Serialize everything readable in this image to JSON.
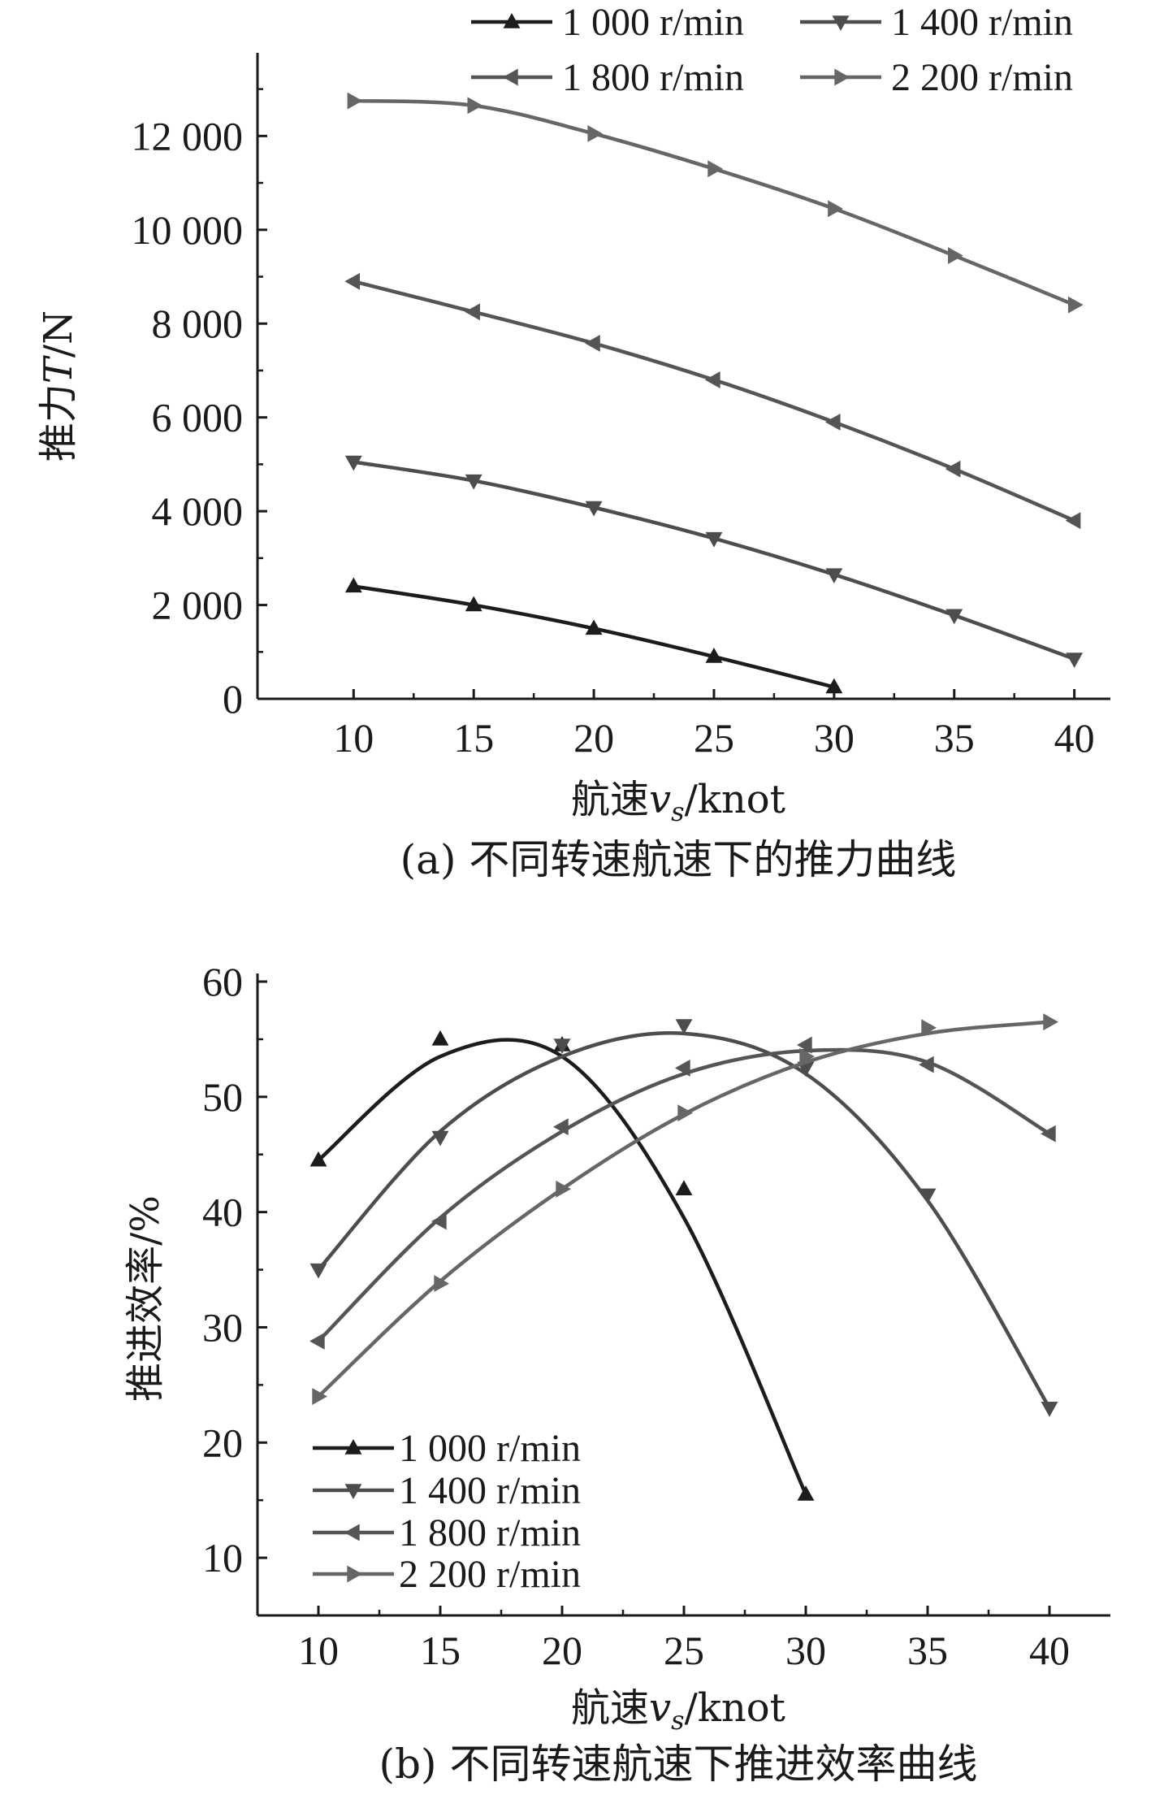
{
  "chart_data": [
    {
      "type": "line",
      "caption": "(a) 不同转速航速下的推力曲线",
      "xlabel": "航速v_s/knot",
      "xlabel_parts": {
        "prefix": "航速",
        "var": "v",
        "sub": "s",
        "suffix": "/knot"
      },
      "ylabel": "推力T/N",
      "ylabel_parts": {
        "prefix": "推力",
        "var": "T",
        "suffix": "/N"
      },
      "xlim": [
        6,
        41.5
      ],
      "ylim": [
        0,
        13600
      ],
      "x_ticks": [
        10,
        15,
        20,
        25,
        30,
        35,
        40
      ],
      "y_ticks": [
        0,
        2000,
        4000,
        6000,
        8000,
        10000,
        12000
      ],
      "y_tick_labels": [
        "0",
        "2 000",
        "4 000",
        "6 000",
        "8 000",
        "10 000",
        "12 000"
      ],
      "legend": "top, 2 columns",
      "series": [
        {
          "name": "1 000 r/min",
          "marker": "triangle-up",
          "color": "#1c1c1c",
          "x": [
            10,
            15,
            20,
            25,
            30
          ],
          "y": [
            2400,
            2000,
            1500,
            900,
            250
          ]
        },
        {
          "name": "1 400 r/min",
          "marker": "triangle-down",
          "color": "#4d4d4d",
          "x": [
            10,
            15,
            20,
            25,
            30,
            35,
            40
          ],
          "y": [
            5050,
            4650,
            4080,
            3420,
            2650,
            1780,
            850
          ]
        },
        {
          "name": "1 800 r/min",
          "marker": "triangle-left",
          "color": "#555555",
          "x": [
            10,
            15,
            20,
            25,
            30,
            35,
            40
          ],
          "y": [
            8900,
            8250,
            7580,
            6800,
            5900,
            4900,
            3800
          ]
        },
        {
          "name": "2 200 r/min",
          "marker": "triangle-right",
          "color": "#666666",
          "x": [
            10,
            15,
            20,
            25,
            30,
            35,
            40
          ],
          "y": [
            12750,
            12650,
            12050,
            11300,
            10450,
            9450,
            8400
          ]
        }
      ]
    },
    {
      "type": "line",
      "caption": "(b) 不同转速航速下推进效率曲线",
      "xlabel": "航速v_s/knot",
      "xlabel_parts": {
        "prefix": "航速",
        "var": "v",
        "sub": "s",
        "suffix": "/knot"
      },
      "ylabel": "推进效率/%",
      "ylabel_parts": {
        "prefix": "推进效率/%",
        "var": "",
        "suffix": ""
      },
      "xlim": [
        7.5,
        42.5
      ],
      "ylim": [
        5,
        60
      ],
      "x_ticks": [
        10,
        15,
        20,
        25,
        30,
        35,
        40
      ],
      "y_ticks": [
        10,
        20,
        30,
        40,
        50,
        60
      ],
      "y_tick_labels": [
        "10",
        "20",
        "30",
        "40",
        "50",
        "60"
      ],
      "legend": "bottom-left",
      "series": [
        {
          "name": "1 000 r/min",
          "marker": "triangle-up",
          "color": "#1c1c1c",
          "x": [
            10,
            15,
            20,
            25,
            30
          ],
          "y": [
            44.5,
            55,
            54.5,
            42,
            15.5
          ],
          "curve": [
            44.5,
            53.5,
            53.5,
            39.5,
            15.5
          ]
        },
        {
          "name": "1 400 r/min",
          "marker": "triangle-down",
          "color": "#4d4d4d",
          "x": [
            10,
            15,
            20,
            25,
            30,
            35,
            40
          ],
          "y": [
            35,
            46.5,
            54.5,
            56.2,
            52.5,
            41.5,
            23
          ],
          "curve": [
            35,
            47,
            53.5,
            55.5,
            52,
            41,
            23
          ]
        },
        {
          "name": "1 800 r/min",
          "marker": "triangle-left",
          "color": "#555555",
          "x": [
            10,
            15,
            20,
            25,
            30,
            35,
            40
          ],
          "y": [
            28.8,
            39.2,
            47.4,
            52.5,
            54.5,
            52.8,
            46.8
          ],
          "curve": [
            28.8,
            39.5,
            47,
            52,
            54,
            53,
            46.8
          ]
        },
        {
          "name": "2 200 r/min",
          "marker": "triangle-right",
          "color": "#666666",
          "x": [
            10,
            15,
            20,
            25,
            30,
            35,
            40
          ],
          "y": [
            24,
            33.8,
            42,
            48.6,
            53.5,
            56,
            56.5
          ],
          "curve": [
            24,
            34,
            42,
            48.5,
            53,
            55.5,
            56.5
          ]
        }
      ]
    }
  ]
}
